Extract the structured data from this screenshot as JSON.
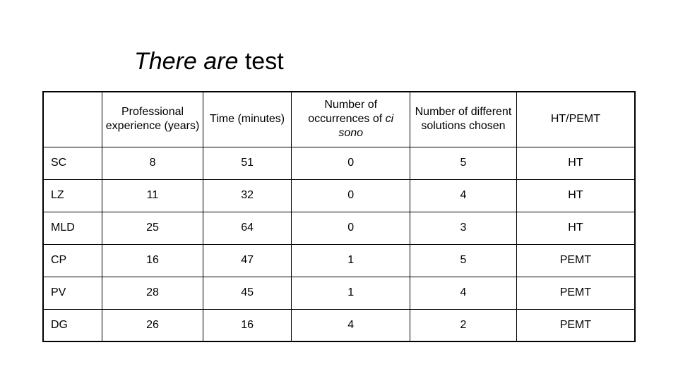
{
  "title": {
    "italic_part": "There are",
    "rest": " test",
    "fontsize_pt": 26,
    "font_family": "Verdana",
    "color": "#000000"
  },
  "table": {
    "type": "table",
    "background_color": "#ffffff",
    "border_color": "#000000",
    "text_color": "#000000",
    "header_fontsize_pt": 12,
    "cell_fontsize_pt": 12,
    "col_widths_pct": [
      10,
      17,
      15,
      20,
      18,
      20
    ],
    "columns": {
      "c0": "",
      "c1": "Professional experience (years)",
      "c2": "Time (minutes)",
      "c3_pre": "Number of occurrences of ",
      "c3_italic": "ci sono",
      "c4": "Number of different solutions chosen",
      "c5": "HT/PEMT"
    },
    "rows": [
      {
        "label": "SC",
        "exp": "8",
        "time": "51",
        "occ": "0",
        "sol": "5",
        "mode": "HT"
      },
      {
        "label": "LZ",
        "exp": "11",
        "time": "32",
        "occ": "0",
        "sol": "4",
        "mode": "HT"
      },
      {
        "label": "MLD",
        "exp": "25",
        "time": "64",
        "occ": "0",
        "sol": "3",
        "mode": "HT"
      },
      {
        "label": "CP",
        "exp": "16",
        "time": "47",
        "occ": "1",
        "sol": "5",
        "mode": "PEMT"
      },
      {
        "label": "PV",
        "exp": "28",
        "time": "45",
        "occ": "1",
        "sol": "4",
        "mode": "PEMT"
      },
      {
        "label": "DG",
        "exp": "26",
        "time": "16",
        "occ": "4",
        "sol": "2",
        "mode": "PEMT"
      }
    ]
  }
}
